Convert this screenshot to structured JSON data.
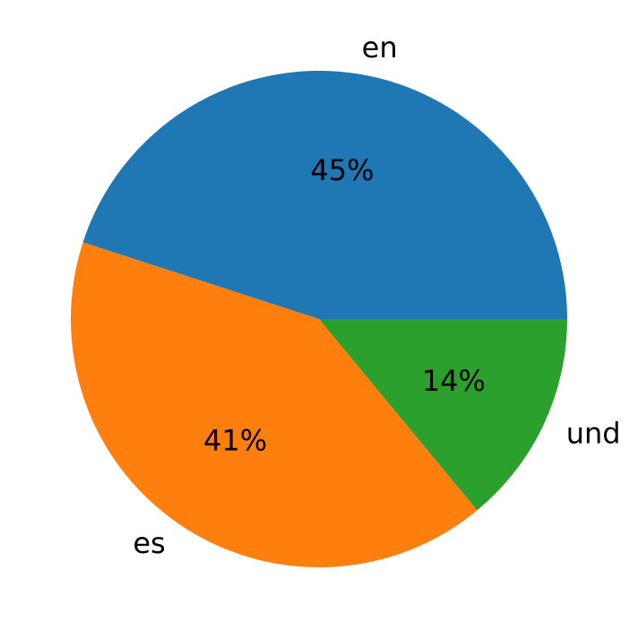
{
  "chart_data": {
    "type": "pie",
    "categories": [
      "en",
      "es",
      "und"
    ],
    "values": [
      45,
      41,
      14
    ],
    "value_labels": [
      "45%",
      "41%",
      "14%"
    ],
    "colors": [
      "#1f77b4",
      "#ff7f0e",
      "#2ca02c"
    ]
  }
}
